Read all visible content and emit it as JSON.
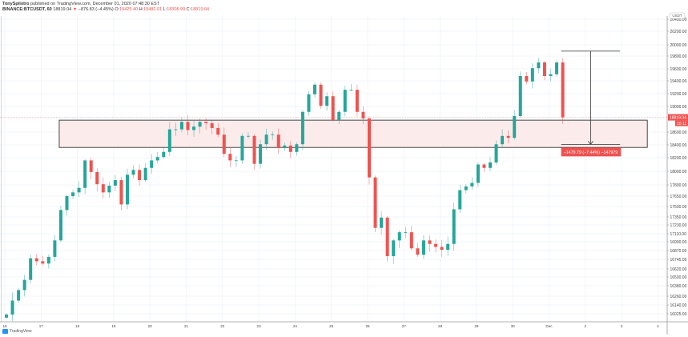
{
  "header": {
    "author": "TonySpilotro",
    "published": "published on TradingView.com, December 01, 2020 07:48:30 EST",
    "symbol": "BINANCE:BTCUSDT, 60",
    "last": "18819.04",
    "change": "−876.83 (−4.45%)",
    "o_label": "O:",
    "o": "19425.40",
    "h_label": "H:",
    "h": "19482.01",
    "l_label": "L:",
    "l": "18308.99",
    "c_label": "C:",
    "c": "18819.04"
  },
  "footer": {
    "logo_text": "TradingView"
  },
  "colors": {
    "up": "#26a69a",
    "down": "#ef5350",
    "zone_fill": "#fcebeb",
    "zone_border": "#333333",
    "measure_label": "#ef5350",
    "grid": "#eef2f7"
  },
  "chart_data": {
    "type": "candlestick",
    "interval": "60",
    "y_scale": "non-linear (as printed axis)",
    "currency_label": "USDT",
    "y_ticks": [
      "20400.00",
      "20200.00",
      "20000.00",
      "19800.00",
      "19600.00",
      "19400.00",
      "19200.00",
      "19000.00",
      "18800.00",
      "18600.00",
      "18400.00",
      "18200.00",
      "18000.00",
      "17800.00",
      "17650.00",
      "17500.00",
      "17350.00",
      "17230.00",
      "17110.00",
      "16990.00",
      "16870.00",
      "16745.00",
      "16620.00",
      "16500.00",
      "16380.00",
      "16260.00",
      "16140.00",
      "16025.00"
    ],
    "x_ticks": [
      "16",
      "17",
      "18",
      "19",
      "20",
      "21",
      "22",
      "23",
      "24",
      "25",
      "26",
      "27",
      "28",
      "29",
      "30",
      "Dec",
      "2",
      "3",
      "4"
    ],
    "grid": true,
    "closes_every_4h": [
      {
        "date": "2020-11-16",
        "closes": [
          16015,
          16200,
          16330,
          16460,
          16760,
          16720
        ]
      },
      {
        "date": "2020-11-17",
        "closes": [
          16690,
          16780,
          17010,
          17450,
          17650,
          17700
        ]
      },
      {
        "date": "2020-11-18",
        "closes": [
          17760,
          18160,
          17990,
          17810,
          17700,
          17790
        ]
      },
      {
        "date": "2020-11-19",
        "closes": [
          17870,
          17530,
          17950,
          18020,
          17870,
          18050
        ]
      },
      {
        "date": "2020-11-20",
        "closes": [
          18160,
          18210,
          18290,
          18640,
          18640,
          18750
        ]
      },
      {
        "date": "2020-11-21",
        "closes": [
          18630,
          18680,
          18750,
          18730,
          18660,
          18560
        ]
      },
      {
        "date": "2020-11-22",
        "closes": [
          18260,
          18160,
          18160,
          18540,
          18540,
          18110
        ]
      },
      {
        "date": "2020-11-23",
        "closes": [
          18410,
          18560,
          18560,
          18350,
          18390,
          18290
        ]
      },
      {
        "date": "2020-11-24",
        "closes": [
          18410,
          18910,
          19190,
          19340,
          19010,
          19160
        ]
      },
      {
        "date": "2020-11-25",
        "closes": [
          18780,
          18910,
          19260,
          19260,
          18910,
          18800
        ]
      },
      {
        "date": "2020-11-26",
        "closes": [
          17910,
          17190,
          17340,
          16790,
          17010,
          17130
        ]
      },
      {
        "date": "2020-11-27",
        "closes": [
          17130,
          16900,
          16810,
          17010,
          16960,
          16920
        ]
      },
      {
        "date": "2020-11-28",
        "closes": [
          16880,
          16960,
          17460,
          17730,
          17780,
          17830
        ]
      },
      {
        "date": "2020-11-29",
        "closes": [
          18100,
          18050,
          18130,
          18410,
          18540,
          18510
        ]
      },
      {
        "date": "2020-11-30",
        "closes": [
          18840,
          19480,
          19390,
          19610,
          19700,
          19480
        ]
      },
      {
        "date": "2020-12-01",
        "closes": [
          19510,
          19700,
          18819.04
        ]
      }
    ],
    "last_price_tag": "18819.04",
    "countdown": "10:11",
    "zone": {
      "top": 18775,
      "bottom": 18360,
      "from": "2020-11-17 12:00",
      "to": "2020-12-03 17:00"
    },
    "measure": {
      "from_price": 19888,
      "to_price": 18408,
      "from": "2020-12-01 08:00",
      "to": "2020-12-02 23:00",
      "label": "−1479.79 (−7.44%) −147979"
    }
  }
}
